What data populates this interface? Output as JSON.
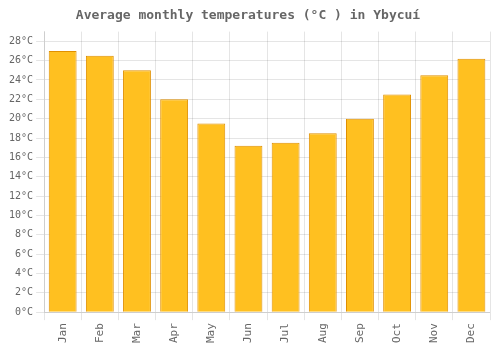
{
  "chart_data": {
    "type": "bar",
    "title": "Average monthly temperatures (°C ) in Ybycuí",
    "categories": [
      "Jan",
      "Feb",
      "Mar",
      "Apr",
      "May",
      "Jun",
      "Jul",
      "Aug",
      "Sep",
      "Oct",
      "Nov",
      "Dec"
    ],
    "values": [
      27,
      26.5,
      25,
      22,
      19.5,
      17.2,
      17.5,
      18.5,
      20,
      22.5,
      24.5,
      26.2
    ],
    "color": "#FFC020",
    "ylim": [
      0,
      29
    ],
    "yticks": [
      {
        "value": 0,
        "label": "0°C"
      },
      {
        "value": 2,
        "label": "2°C"
      },
      {
        "value": 4,
        "label": "4°C"
      },
      {
        "value": 6,
        "label": "6°C"
      },
      {
        "value": 8,
        "label": "8°C"
      },
      {
        "value": 10,
        "label": "10°C"
      },
      {
        "value": 12,
        "label": "12°C"
      },
      {
        "value": 14,
        "label": "14°C"
      },
      {
        "value": 16,
        "label": "16°C"
      },
      {
        "value": 18,
        "label": "18°C"
      },
      {
        "value": 20,
        "label": "20°C"
      },
      {
        "value": 22,
        "label": "22°C"
      },
      {
        "value": 24,
        "label": "24°C"
      },
      {
        "value": 26,
        "label": "26°C"
      },
      {
        "value": 28,
        "label": "28°C"
      }
    ],
    "grid": true
  }
}
